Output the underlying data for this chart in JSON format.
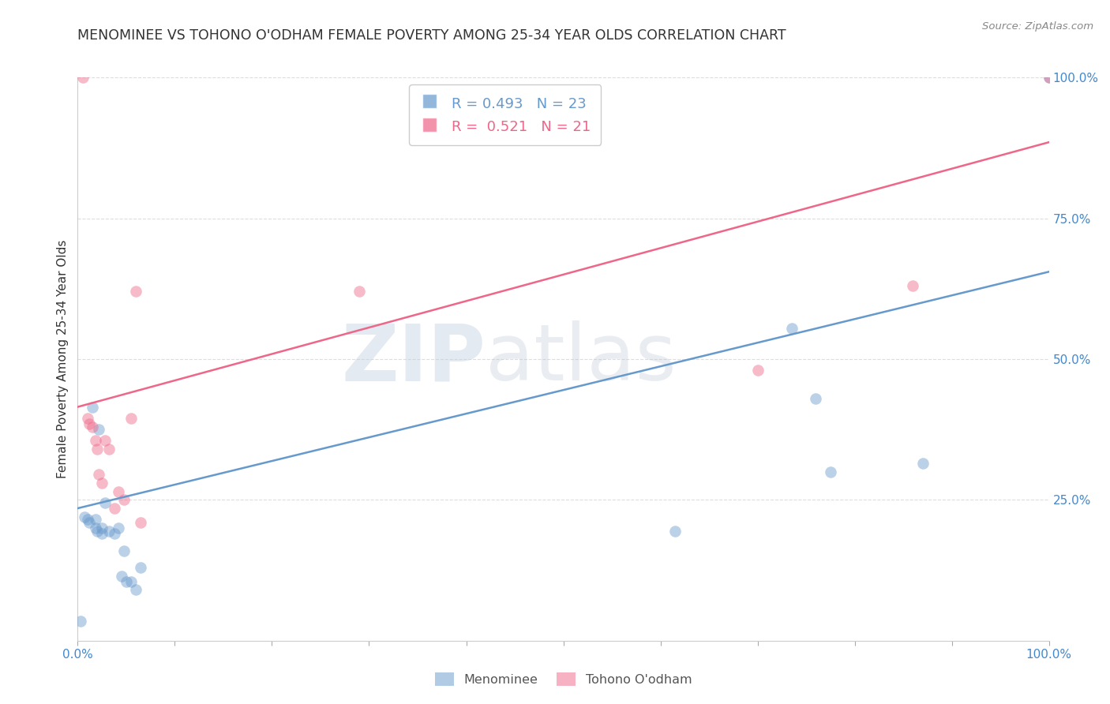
{
  "title": "MENOMINEE VS TOHONO O'ODHAM FEMALE POVERTY AMONG 25-34 YEAR OLDS CORRELATION CHART",
  "source": "Source: ZipAtlas.com",
  "ylabel": "Female Poverty Among 25-34 Year Olds",
  "menominee_color": "#6699cc",
  "tohono_color": "#ee6688",
  "menominee_label": "Menominee",
  "tohono_label": "Tohono O'odham",
  "menominee_R": "0.493",
  "menominee_N": "23",
  "tohono_R": "0.521",
  "tohono_N": "21",
  "watermark_zip": "ZIP",
  "watermark_atlas": "atlas",
  "xlim": [
    0.0,
    1.0
  ],
  "ylim": [
    0.0,
    1.0
  ],
  "menominee_x": [
    0.003,
    0.007,
    0.01,
    0.012,
    0.015,
    0.018,
    0.018,
    0.02,
    0.022,
    0.025,
    0.025,
    0.028,
    0.032,
    0.038,
    0.042,
    0.045,
    0.048,
    0.05,
    0.055,
    0.06,
    0.065,
    0.615,
    0.735,
    0.76,
    0.775,
    0.87,
    1.0
  ],
  "menominee_y": [
    0.035,
    0.22,
    0.215,
    0.21,
    0.415,
    0.215,
    0.2,
    0.195,
    0.375,
    0.2,
    0.19,
    0.245,
    0.195,
    0.19,
    0.2,
    0.115,
    0.16,
    0.105,
    0.105,
    0.09,
    0.13,
    0.195,
    0.555,
    0.43,
    0.3,
    0.315,
    1.0
  ],
  "tohono_x": [
    0.005,
    0.01,
    0.012,
    0.015,
    0.018,
    0.02,
    0.022,
    0.025,
    0.028,
    0.032,
    0.038,
    0.042,
    0.048,
    0.055,
    0.06,
    0.065,
    0.29,
    0.7,
    0.86,
    1.0
  ],
  "tohono_y": [
    1.0,
    0.395,
    0.385,
    0.38,
    0.355,
    0.34,
    0.295,
    0.28,
    0.355,
    0.34,
    0.235,
    0.265,
    0.25,
    0.395,
    0.62,
    0.21,
    0.62,
    0.48,
    0.63,
    1.0
  ],
  "menominee_line_x": [
    0.0,
    1.0
  ],
  "menominee_line_y": [
    0.235,
    0.655
  ],
  "tohono_line_x": [
    0.0,
    1.0
  ],
  "tohono_line_y": [
    0.415,
    0.885
  ],
  "bg_color": "#ffffff",
  "grid_color": "#dddddd",
  "title_color": "#333333",
  "axis_color": "#4488cc",
  "font_size_title": 12.5,
  "font_size_axis": 11,
  "font_size_ticks": 11,
  "font_size_legend": 13,
  "marker_size": 110,
  "marker_alpha": 0.45,
  "line_width": 1.8
}
